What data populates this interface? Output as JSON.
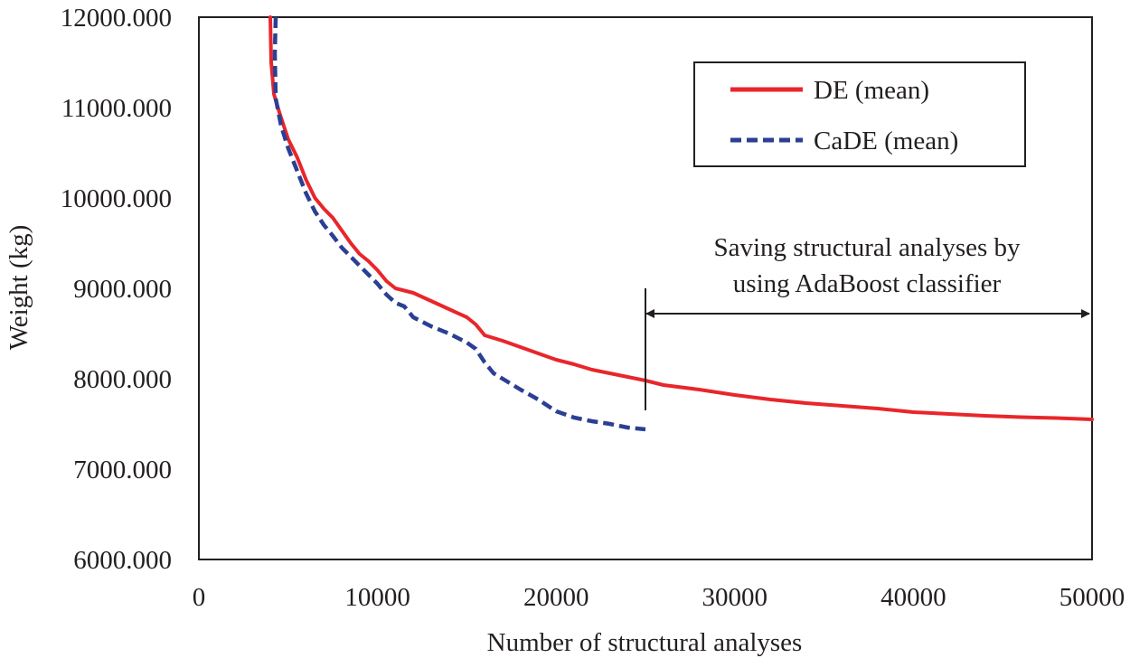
{
  "chart_data": {
    "type": "line",
    "title": "",
    "xlabel": "Number of structural analyses",
    "ylabel": "Weight (kg)",
    "xlim": [
      0,
      50000
    ],
    "ylim": [
      6000,
      12000
    ],
    "x_ticks": [
      0,
      10000,
      20000,
      30000,
      40000,
      50000
    ],
    "x_tick_labels": [
      "0",
      "10000",
      "20000",
      "30000",
      "40000",
      "50000"
    ],
    "y_ticks": [
      6000,
      7000,
      8000,
      9000,
      10000,
      11000,
      12000
    ],
    "y_tick_labels": [
      "6000.000",
      "7000.000",
      "8000.000",
      "9000.000",
      "10000.000",
      "11000.000",
      "12000.000"
    ],
    "grid": false,
    "legend_position": "top-right",
    "series": [
      {
        "name": "DE (mean)",
        "color": "#e8262b",
        "style": "solid",
        "points": [
          [
            4000,
            12000
          ],
          [
            4050,
            11500
          ],
          [
            4200,
            11150
          ],
          [
            4500,
            10950
          ],
          [
            5000,
            10650
          ],
          [
            5500,
            10450
          ],
          [
            6000,
            10200
          ],
          [
            6500,
            10000
          ],
          [
            7000,
            9880
          ],
          [
            7500,
            9780
          ],
          [
            8000,
            9640
          ],
          [
            8500,
            9500
          ],
          [
            9000,
            9380
          ],
          [
            9500,
            9300
          ],
          [
            10000,
            9200
          ],
          [
            10500,
            9080
          ],
          [
            11000,
            9000
          ],
          [
            12000,
            8950
          ],
          [
            13000,
            8860
          ],
          [
            14000,
            8770
          ],
          [
            15000,
            8680
          ],
          [
            15500,
            8600
          ],
          [
            16000,
            8480
          ],
          [
            17000,
            8420
          ],
          [
            18000,
            8350
          ],
          [
            19000,
            8280
          ],
          [
            20000,
            8210
          ],
          [
            21000,
            8160
          ],
          [
            22000,
            8100
          ],
          [
            23000,
            8060
          ],
          [
            24000,
            8020
          ],
          [
            25000,
            7980
          ],
          [
            26000,
            7930
          ],
          [
            28000,
            7880
          ],
          [
            30000,
            7820
          ],
          [
            32000,
            7770
          ],
          [
            34000,
            7730
          ],
          [
            36000,
            7700
          ],
          [
            38000,
            7670
          ],
          [
            40000,
            7630
          ],
          [
            42000,
            7610
          ],
          [
            44000,
            7590
          ],
          [
            46000,
            7575
          ],
          [
            48000,
            7565
          ],
          [
            50000,
            7550
          ]
        ]
      },
      {
        "name": "CaDE (mean)",
        "color": "#2b3f93",
        "style": "dashed",
        "points": [
          [
            4300,
            12000
          ],
          [
            4250,
            11600
          ],
          [
            4300,
            11100
          ],
          [
            4600,
            10800
          ],
          [
            5000,
            10550
          ],
          [
            5500,
            10300
          ],
          [
            6000,
            10050
          ],
          [
            6500,
            9850
          ],
          [
            7000,
            9700
          ],
          [
            7500,
            9580
          ],
          [
            8000,
            9450
          ],
          [
            8500,
            9350
          ],
          [
            9000,
            9250
          ],
          [
            9500,
            9150
          ],
          [
            10000,
            9050
          ],
          [
            10500,
            8930
          ],
          [
            11000,
            8840
          ],
          [
            11500,
            8800
          ],
          [
            12000,
            8680
          ],
          [
            13000,
            8580
          ],
          [
            14000,
            8500
          ],
          [
            15000,
            8400
          ],
          [
            15500,
            8330
          ],
          [
            16000,
            8180
          ],
          [
            16500,
            8060
          ],
          [
            17000,
            8000
          ],
          [
            18000,
            7880
          ],
          [
            19000,
            7770
          ],
          [
            20000,
            7640
          ],
          [
            21000,
            7570
          ],
          [
            22000,
            7530
          ],
          [
            23000,
            7500
          ],
          [
            24000,
            7460
          ],
          [
            25000,
            7440
          ]
        ]
      }
    ],
    "annotations": [
      {
        "text_lines": [
          "Saving structural analyses by",
          "using AdaBoost classifier"
        ],
        "arrow_from_x": 25000,
        "arrow_to_x": 50000,
        "arrow_y": 8720,
        "marker_x": 25000,
        "marker_y_range": [
          7650,
          9000
        ]
      }
    ]
  }
}
